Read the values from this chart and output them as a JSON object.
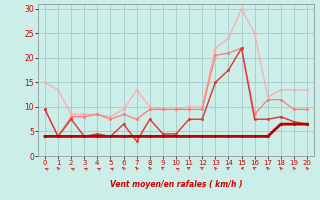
{
  "xlabel": "Vent moyen/en rafales ( km/h )",
  "background_color": "#cceee8",
  "grid_color": "#aacccc",
  "xlim": [
    -0.5,
    20.5
  ],
  "ylim": [
    0,
    31
  ],
  "yticks": [
    0,
    5,
    10,
    15,
    20,
    25,
    30
  ],
  "xticks": [
    0,
    1,
    2,
    3,
    4,
    5,
    6,
    7,
    8,
    9,
    10,
    11,
    12,
    13,
    14,
    15,
    16,
    17,
    18,
    19,
    20
  ],
  "series": [
    {
      "x": [
        0,
        1,
        2,
        3,
        4,
        5,
        6,
        7,
        8,
        9,
        10,
        11,
        12,
        13,
        14,
        15,
        16,
        17,
        18,
        19,
        20
      ],
      "y": [
        15.0,
        13.5,
        8.5,
        8.5,
        8.5,
        8.0,
        9.5,
        13.5,
        10.0,
        9.5,
        9.5,
        10.0,
        10.0,
        22.0,
        24.0,
        30.0,
        25.0,
        12.0,
        13.5,
        13.5,
        13.5
      ],
      "color": "#ffaaaa",
      "lw": 0.9,
      "marker": "o",
      "ms": 1.8
    },
    {
      "x": [
        0,
        1,
        2,
        3,
        4,
        5,
        6,
        7,
        8,
        9,
        10,
        11,
        12,
        13,
        14,
        15,
        16,
        17,
        18,
        19,
        20
      ],
      "y": [
        9.5,
        4.0,
        8.0,
        8.0,
        8.5,
        7.5,
        8.5,
        7.5,
        9.5,
        9.5,
        9.5,
        9.5,
        9.5,
        20.5,
        21.0,
        22.0,
        8.5,
        11.5,
        11.5,
        9.5,
        9.5
      ],
      "color": "#ff7777",
      "lw": 0.9,
      "marker": "o",
      "ms": 1.8
    },
    {
      "x": [
        0,
        1,
        2,
        3,
        4,
        5,
        6,
        7,
        8,
        9,
        10,
        11,
        12,
        13,
        14,
        15,
        16,
        17,
        18,
        19,
        20
      ],
      "y": [
        9.5,
        4.0,
        7.5,
        4.0,
        4.5,
        4.0,
        6.5,
        3.0,
        7.5,
        4.5,
        4.5,
        7.5,
        7.5,
        15.0,
        17.5,
        22.0,
        7.5,
        7.5,
        8.0,
        7.0,
        6.5
      ],
      "color": "#dd3333",
      "lw": 1.0,
      "marker": "o",
      "ms": 1.8
    },
    {
      "x": [
        0,
        1,
        2,
        3,
        4,
        5,
        6,
        7,
        8,
        9,
        10,
        11,
        12,
        13,
        14,
        15,
        16,
        17,
        18,
        19,
        20
      ],
      "y": [
        4.0,
        4.0,
        4.0,
        4.0,
        4.0,
        4.0,
        4.0,
        4.0,
        4.0,
        4.0,
        4.0,
        4.0,
        4.0,
        4.0,
        4.0,
        4.0,
        4.0,
        4.0,
        6.5,
        6.5,
        6.5
      ],
      "color": "#bb0000",
      "lw": 2.0,
      "marker": "o",
      "ms": 1.8
    }
  ],
  "wind_arrow_angles": [
    225,
    200,
    225,
    225,
    225,
    225,
    200,
    200,
    200,
    215,
    225,
    220,
    215,
    200,
    215,
    270,
    215,
    200,
    200,
    200,
    200
  ]
}
